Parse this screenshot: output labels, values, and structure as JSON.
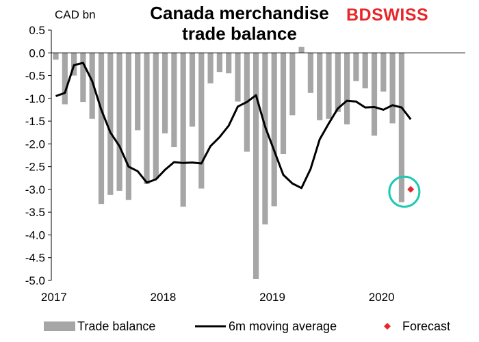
{
  "header": {
    "title_line1": "Canada merchandise",
    "title_line2": "trade balance",
    "unit": "CAD bn",
    "brand_part1": "BD",
    "brand_part2": "SWISS"
  },
  "colors": {
    "bars": "#a6a6a6",
    "line": "#000000",
    "forecast": "#e8262a",
    "highlight_circle": "#1cc9b3"
  },
  "chart_data": {
    "type": "bar",
    "ylim": [
      -5.0,
      0.5
    ],
    "yticks": [
      0.5,
      0.0,
      -0.5,
      -1.0,
      -1.5,
      -2.0,
      -2.5,
      -3.0,
      -3.5,
      -4.0,
      -4.5,
      -5.0
    ],
    "ytick_labels": [
      "0.5",
      "0.0",
      "-0.5",
      "-1.0",
      "-1.5",
      "-2.0",
      "-2.5",
      "-3.0",
      "-3.5",
      "-4.0",
      "-4.5",
      "-5.0"
    ],
    "xtick_labels": [
      "2017",
      "2018",
      "2019",
      "2020"
    ],
    "legend_position": "bottom",
    "grid": false,
    "months": [
      "2017-01",
      "2017-02",
      "2017-03",
      "2017-04",
      "2017-05",
      "2017-06",
      "2017-07",
      "2017-08",
      "2017-09",
      "2017-10",
      "2017-11",
      "2017-12",
      "2018-01",
      "2018-02",
      "2018-03",
      "2018-04",
      "2018-05",
      "2018-06",
      "2018-07",
      "2018-08",
      "2018-09",
      "2018-10",
      "2018-11",
      "2018-12",
      "2019-01",
      "2019-02",
      "2019-03",
      "2019-04",
      "2019-05",
      "2019-06",
      "2019-07",
      "2019-08",
      "2019-09",
      "2019-10",
      "2019-11",
      "2019-12",
      "2020-01",
      "2020-02",
      "2020-03",
      "2020-04"
    ],
    "series": [
      {
        "name": "Trade balance",
        "type": "bar",
        "values": [
          -0.15,
          -1.13,
          -0.5,
          -1.08,
          -1.45,
          -3.32,
          -3.12,
          -3.03,
          -3.23,
          -1.7,
          -2.88,
          -2.77,
          -1.77,
          -2.07,
          -3.38,
          -1.62,
          -2.98,
          -0.67,
          -0.42,
          -0.45,
          -1.07,
          -2.17,
          -4.97,
          -3.77,
          -3.37,
          -2.22,
          -1.37,
          0.13,
          -0.88,
          -1.48,
          -1.45,
          -1.3,
          -1.57,
          -0.62,
          -0.78,
          -1.82,
          -0.85,
          -1.55,
          -3.28,
          null
        ]
      },
      {
        "name": "6m moving average",
        "type": "line",
        "values": [
          -0.95,
          -0.88,
          -0.27,
          -0.22,
          -0.62,
          -1.25,
          -1.75,
          -2.05,
          -2.5,
          -2.6,
          -2.85,
          -2.78,
          -2.57,
          -2.4,
          -2.42,
          -2.41,
          -2.43,
          -2.05,
          -1.85,
          -1.6,
          -1.18,
          -1.08,
          -0.93,
          -1.62,
          -2.15,
          -2.68,
          -2.87,
          -2.97,
          -2.55,
          -1.9,
          -1.55,
          -1.22,
          -1.05,
          -1.07,
          -1.2,
          -1.19,
          -1.25,
          -1.15,
          -1.2,
          -1.46
        ]
      },
      {
        "name": "Forecast",
        "type": "scatter",
        "values": [
          null,
          null,
          null,
          null,
          null,
          null,
          null,
          null,
          null,
          null,
          null,
          null,
          null,
          null,
          null,
          null,
          null,
          null,
          null,
          null,
          null,
          null,
          null,
          null,
          null,
          null,
          null,
          null,
          null,
          null,
          null,
          null,
          null,
          null,
          null,
          null,
          null,
          null,
          null,
          -3.0
        ]
      }
    ]
  }
}
